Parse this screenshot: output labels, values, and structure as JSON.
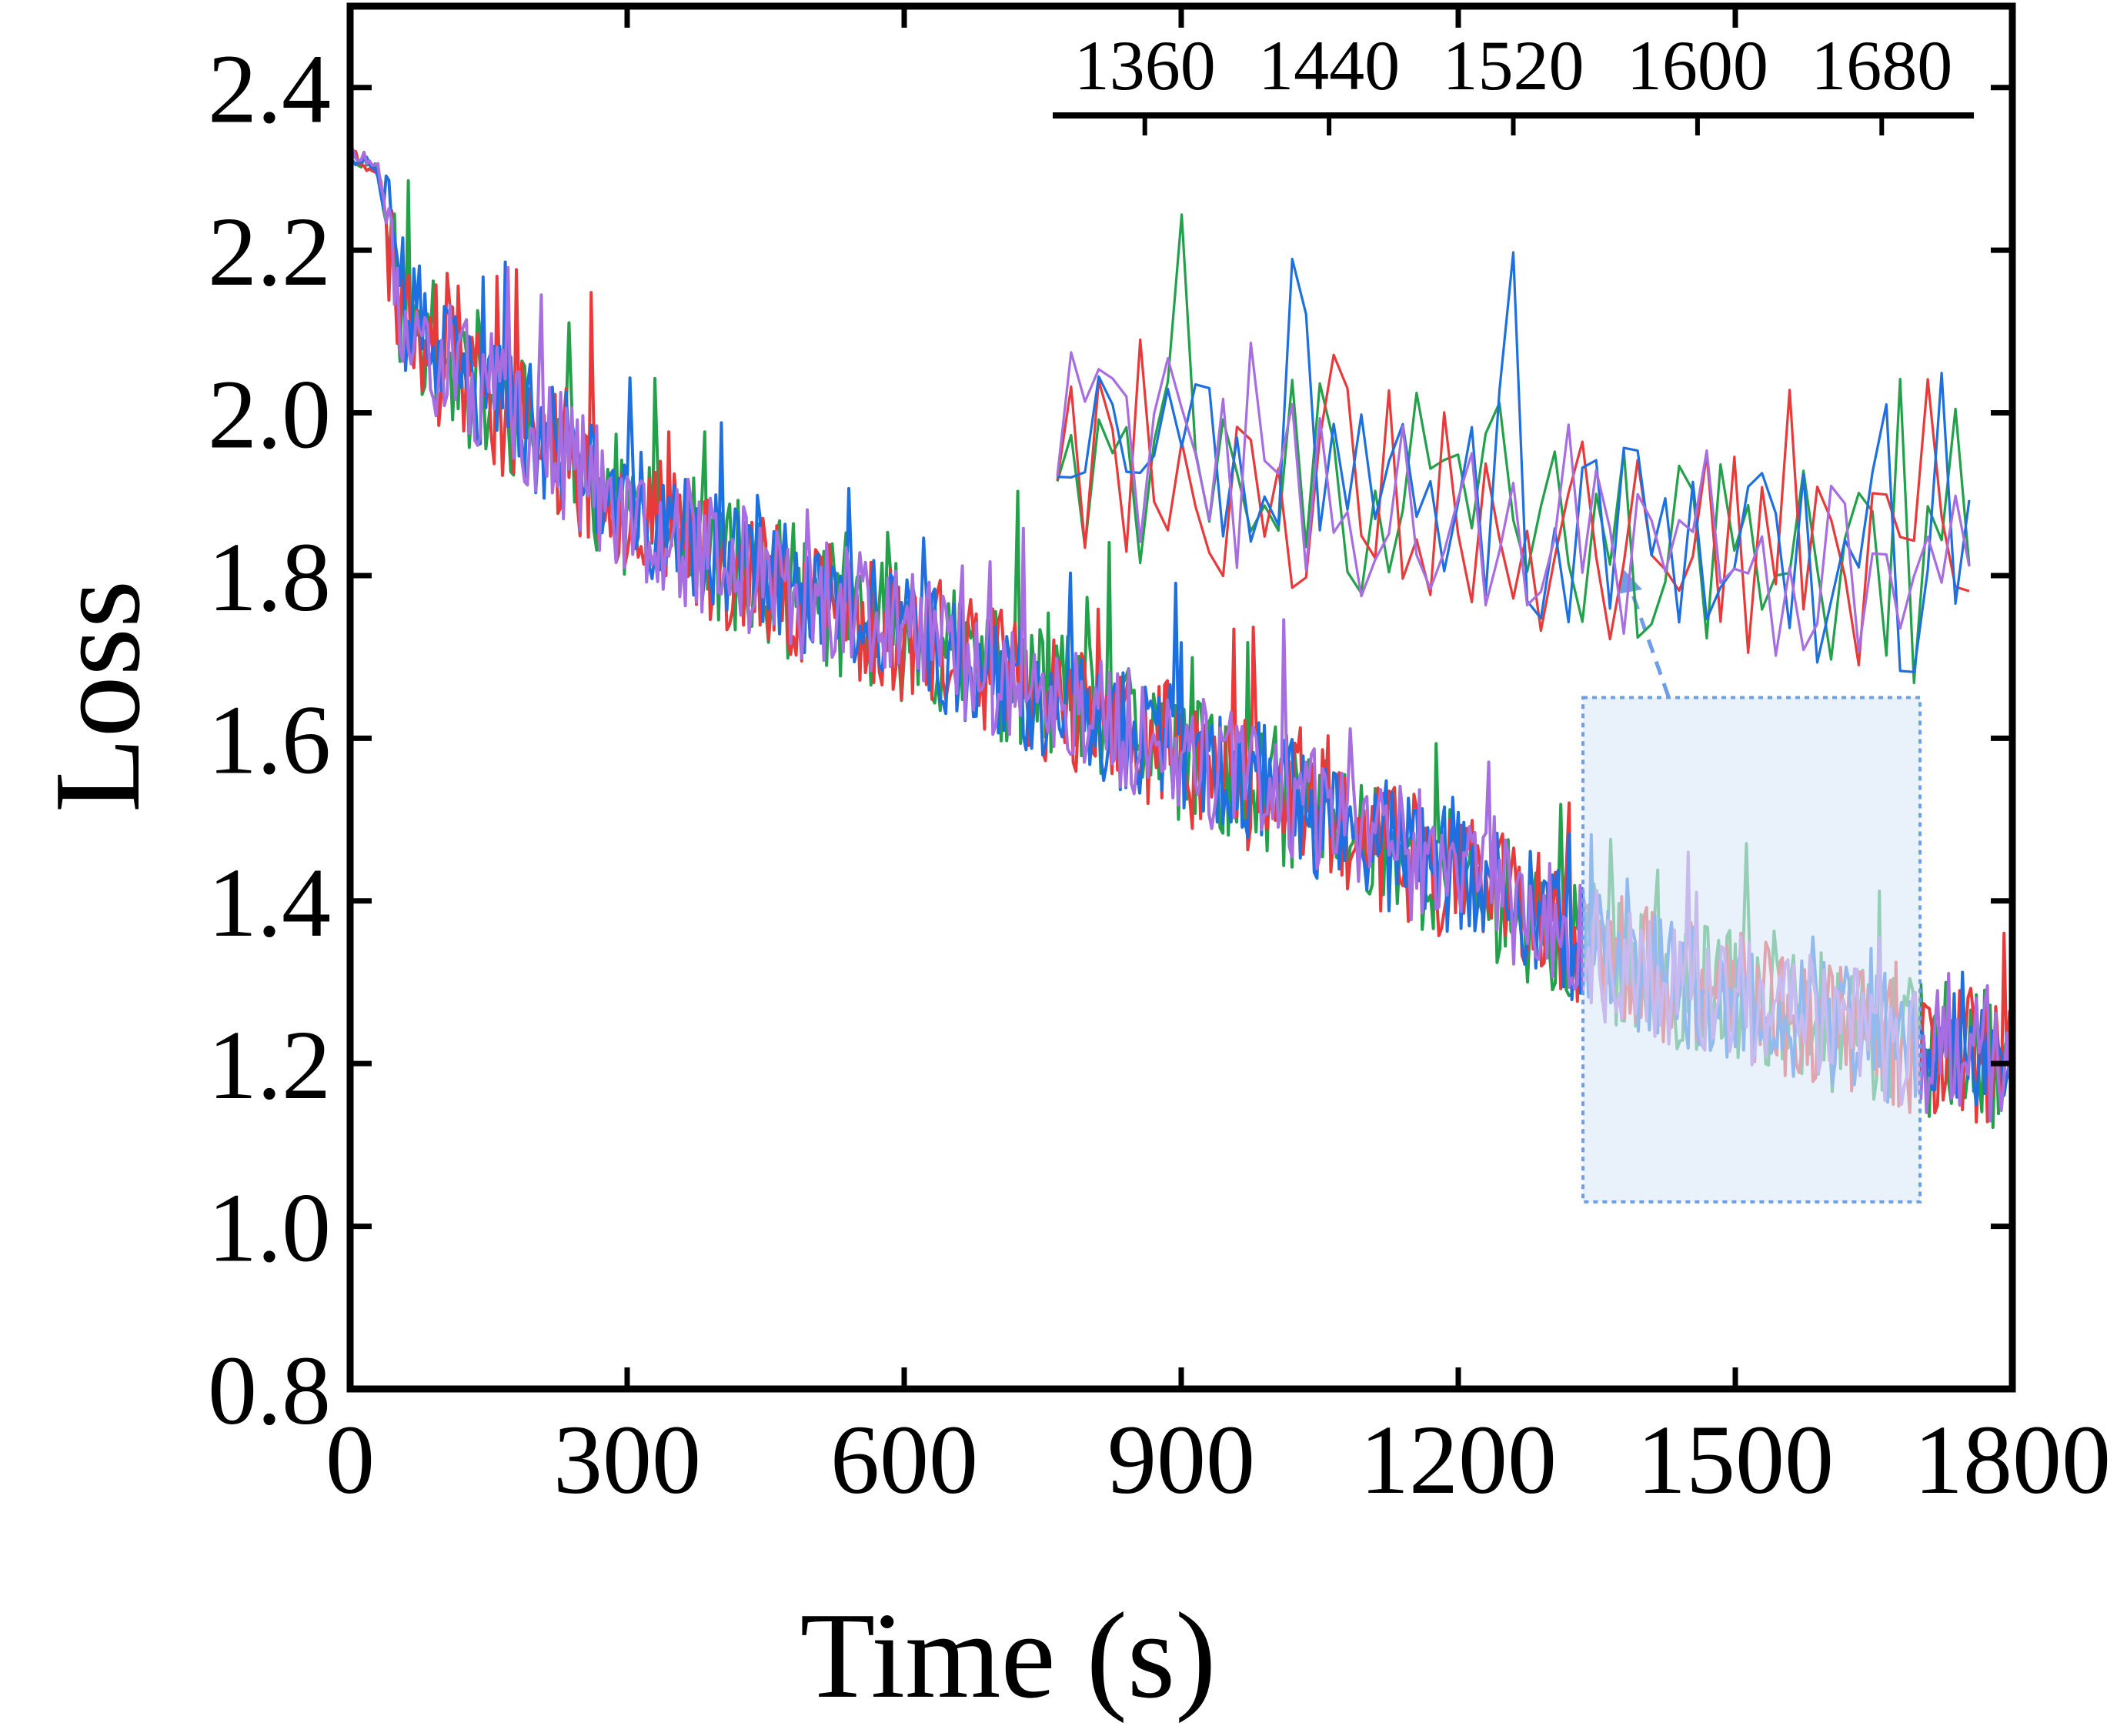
{
  "chart_data": {
    "type": "line",
    "xlabel": "Time (s)",
    "ylabel": "Loss",
    "xlim": [
      0,
      1800
    ],
    "ylim": [
      0.8,
      2.5
    ],
    "xticks": [
      0,
      300,
      600,
      900,
      1200,
      1500,
      1800
    ],
    "yticks": [
      0.8,
      1.0,
      1.2,
      1.4,
      1.6,
      1.8,
      2.0,
      2.2,
      2.4
    ],
    "ytick_labels": [
      "0.8",
      "1.0",
      "1.2",
      "1.4",
      "1.6",
      "1.8",
      "2.0",
      "2.2",
      "2.4"
    ],
    "grid": false,
    "legend": "none",
    "colors": {
      "green": "#22a04a",
      "red": "#e83a3a",
      "blue": "#1e6fe0",
      "purple": "#a66ee0",
      "highlight_fill": "#dbe8f7",
      "highlight_border": "#6f9ee8"
    },
    "series_trend": {
      "x": [
        0,
        30,
        50,
        100,
        200,
        300,
        400,
        500,
        600,
        700,
        800,
        900,
        1000,
        1100,
        1200,
        1300,
        1340,
        1400,
        1500,
        1600,
        1700,
        1760,
        1800
      ],
      "y": [
        2.32,
        2.3,
        2.15,
        2.06,
        1.98,
        1.88,
        1.82,
        1.77,
        1.73,
        1.68,
        1.63,
        1.58,
        1.53,
        1.48,
        1.43,
        1.37,
        1.34,
        1.31,
        1.28,
        1.25,
        1.22,
        1.21,
        1.2
      ]
    },
    "series": [
      {
        "color": "green",
        "noise": 0.085,
        "seed": 11
      },
      {
        "color": "red",
        "noise": 0.085,
        "seed": 23
      },
      {
        "color": "blue",
        "noise": 0.08,
        "seed": 37
      },
      {
        "color": "purple",
        "noise": 0.08,
        "seed": 51
      }
    ],
    "sample_step": 3,
    "highlight_region": {
      "xlim": [
        1335,
        1700
      ],
      "ylim": [
        1.03,
        1.65
      ]
    },
    "inset": {
      "xlim": [
        1320,
        1720
      ],
      "ylim": [
        1.03,
        1.65
      ],
      "xticks": [
        1360,
        1440,
        1520,
        1600,
        1680
      ],
      "sample_step": 6
    }
  }
}
